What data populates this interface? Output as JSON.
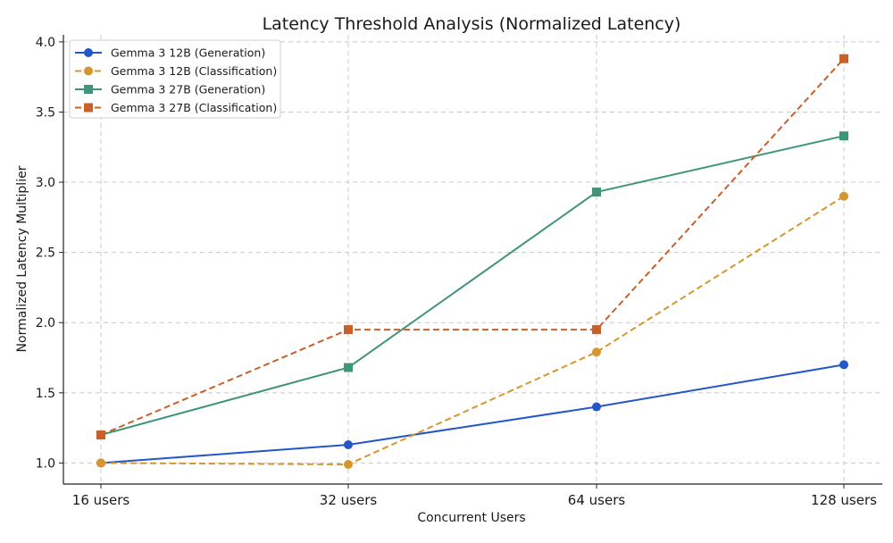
{
  "chart_data": {
    "type": "line",
    "title": "Latency Threshold Analysis (Normalized Latency)",
    "xlabel": "Concurrent Users",
    "ylabel": "Normalized Latency Multiplier",
    "categories": [
      "16 users",
      "32 users",
      "64 users",
      "128 users"
    ],
    "ylim": [
      0.85,
      4.05
    ],
    "yticks": [
      1.0,
      1.5,
      2.0,
      2.5,
      3.0,
      3.5,
      4.0
    ],
    "ytick_labels": [
      "1.0",
      "1.5",
      "2.0",
      "2.5",
      "3.0",
      "3.5",
      "4.0"
    ],
    "grid": true,
    "legend_position": "top-left",
    "series": [
      {
        "name": "Gemma 3 12B (Generation)",
        "values": [
          1.0,
          1.13,
          1.4,
          1.7
        ],
        "color": "#2456c8",
        "dash": false,
        "marker": "circle"
      },
      {
        "name": "Gemma 3 12B (Classification)",
        "values": [
          1.0,
          0.99,
          1.79,
          2.9
        ],
        "color": "#d6962e",
        "dash": true,
        "marker": "circle"
      },
      {
        "name": "Gemma 3 27B (Generation)",
        "values": [
          1.2,
          1.68,
          2.93,
          3.33
        ],
        "color": "#3f9677",
        "dash": false,
        "marker": "square"
      },
      {
        "name": "Gemma 3 27B (Classification)",
        "values": [
          1.2,
          1.95,
          1.95,
          3.88
        ],
        "color": "#c8602a",
        "dash": true,
        "marker": "square"
      }
    ]
  }
}
